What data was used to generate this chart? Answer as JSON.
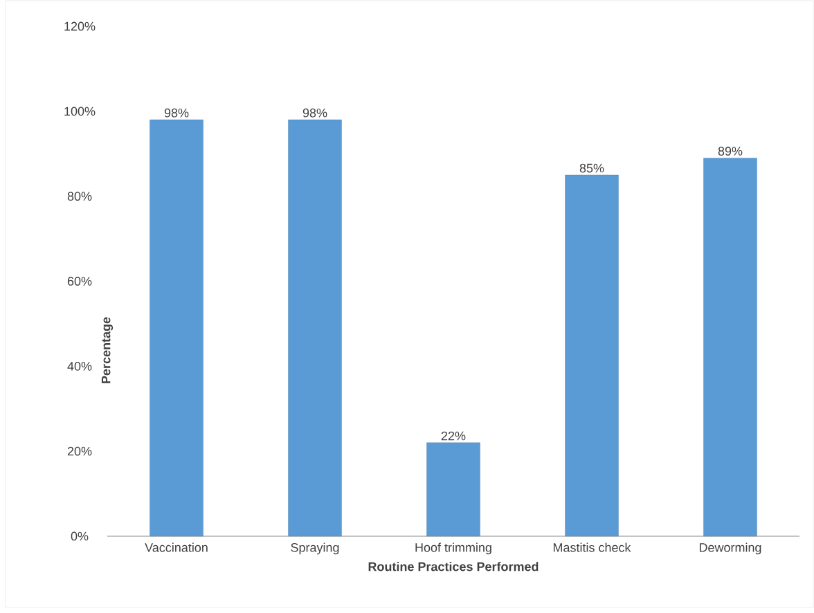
{
  "chart_data": {
    "type": "bar",
    "xlabel": "Routine Practices Performed",
    "ylabel": "Percentage",
    "categories": [
      "Vaccination",
      "Spraying",
      "Hoof trimming",
      "Mastitis check",
      "Deworming"
    ],
    "values": [
      98,
      98,
      22,
      85,
      89
    ],
    "value_labels": [
      "98%",
      "98%",
      "22%",
      "85%",
      "89%"
    ],
    "color": "#5b9bd5",
    "ylim": [
      0,
      120
    ],
    "yticks": [
      {
        "value": 0,
        "label": "0%"
      },
      {
        "value": 20,
        "label": "20%"
      },
      {
        "value": 40,
        "label": "40%"
      },
      {
        "value": 60,
        "label": "60%"
      },
      {
        "value": 80,
        "label": "80%"
      },
      {
        "value": 100,
        "label": "100%"
      },
      {
        "value": 120,
        "label": "120%"
      }
    ],
    "grid": false
  }
}
